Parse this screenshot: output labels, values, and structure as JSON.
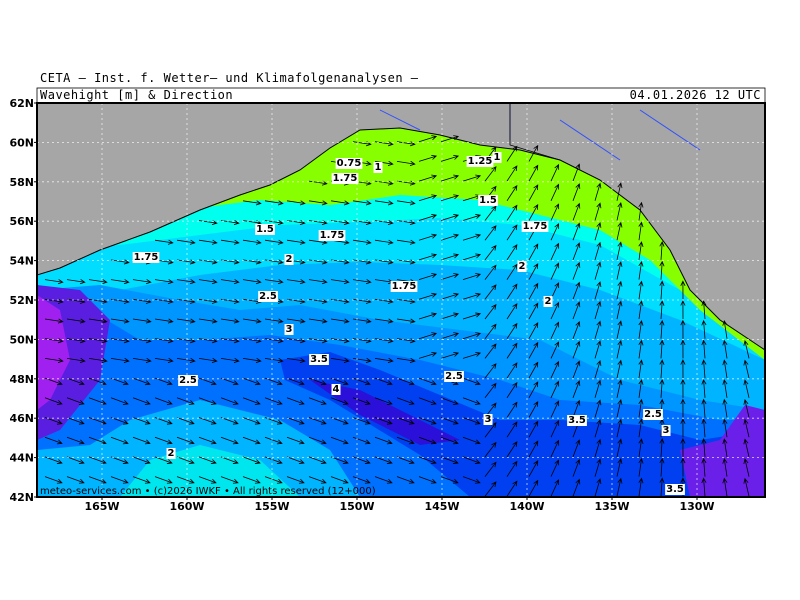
{
  "header": {
    "title": "CETA – Inst. f. Wetter– und Klimafolgenanalysen –",
    "subtitle": "Wavehight [m] & Direction",
    "date": "04.01.2026 12 UTC"
  },
  "map": {
    "lat_ticks": [
      {
        "value": 62,
        "label": "62N"
      },
      {
        "value": 60,
        "label": "60N"
      },
      {
        "value": 58,
        "label": "58N"
      },
      {
        "value": 56,
        "label": "56N"
      },
      {
        "value": 54,
        "label": "54N"
      },
      {
        "value": 52,
        "label": "52N"
      },
      {
        "value": 50,
        "label": "50N"
      },
      {
        "value": 48,
        "label": "48N"
      },
      {
        "value": 46,
        "label": "46N"
      },
      {
        "value": 44,
        "label": "44N"
      },
      {
        "value": 42,
        "label": "42N"
      }
    ],
    "lon_ticks": [
      {
        "value": -165,
        "label": "165W"
      },
      {
        "value": -160,
        "label": "160W"
      },
      {
        "value": -155,
        "label": "155W"
      },
      {
        "value": -150,
        "label": "150W"
      },
      {
        "value": -145,
        "label": "145W"
      },
      {
        "value": -140,
        "label": "140W"
      },
      {
        "value": -135,
        "label": "135W"
      },
      {
        "value": -130,
        "label": "130W"
      }
    ],
    "contour_labels": [
      "0.75",
      "1",
      "1.25",
      "1",
      "1.75",
      "1.5",
      "1.5",
      "1.75",
      "1.75",
      "1.75",
      "2",
      "2",
      "1.75",
      "2.5",
      "2",
      "3",
      "3.5",
      "4",
      "2.5",
      "2.5",
      "3",
      "3.5",
      "2.5",
      "3",
      "2",
      "3.5"
    ],
    "footer": "meteo-services.com • (c)2026 IWKF • All rights reserved (12+000)"
  }
}
